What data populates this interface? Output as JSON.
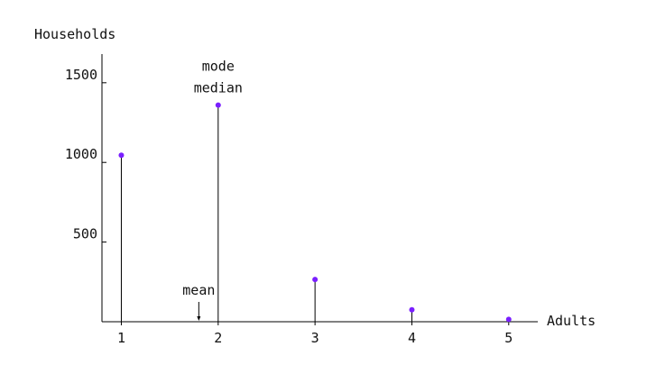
{
  "chart_data": {
    "type": "stem",
    "xlabel": "Adults",
    "ylabel": "Households",
    "x": [
      1,
      2,
      3,
      4,
      5
    ],
    "values": [
      1045,
      1360,
      265,
      75,
      15
    ],
    "xticks": [
      "1",
      "2",
      "3",
      "4",
      "5"
    ],
    "yticks": [
      "500",
      "1000",
      "1500"
    ],
    "ytick_values": [
      500,
      1000,
      1500
    ],
    "xlim": [
      0.8,
      5.3
    ],
    "ylim": [
      0,
      1680
    ],
    "grid": false,
    "marker_color": "#7a1fff",
    "stem_color": "#000000",
    "annotations": [
      {
        "id": "mode",
        "text": "mode",
        "x": 2,
        "y": 1360
      },
      {
        "id": "median",
        "text": "median",
        "x": 2,
        "y": 1360
      },
      {
        "id": "mean",
        "text": "mean",
        "x": 1.8,
        "y": 0
      }
    ]
  }
}
